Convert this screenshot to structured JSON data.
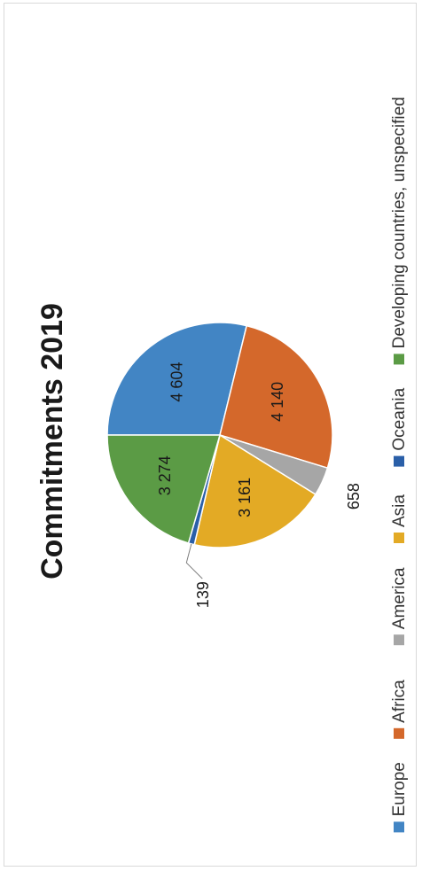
{
  "chart_data": {
    "type": "pie",
    "title": "Commitments 2019",
    "series": [
      {
        "name": "Europe",
        "value": 4604,
        "label": "4 604",
        "color": "#4285c4"
      },
      {
        "name": "Africa",
        "value": 4140,
        "label": "4 140",
        "color": "#d4682b"
      },
      {
        "name": "America",
        "value": 658,
        "label": "658",
        "color": "#a6a6a6"
      },
      {
        "name": "Asia",
        "value": 3161,
        "label": "3 161",
        "color": "#e3aa25"
      },
      {
        "name": "Oceania",
        "value": 139,
        "label": "139",
        "color": "#2a5fa8"
      },
      {
        "name": "Developing countries, unspecified",
        "value": 3274,
        "label": "3 274",
        "color": "#5b9b45"
      }
    ],
    "legend_position": "bottom",
    "orientation": "rotated 90° counter-clockwise"
  }
}
